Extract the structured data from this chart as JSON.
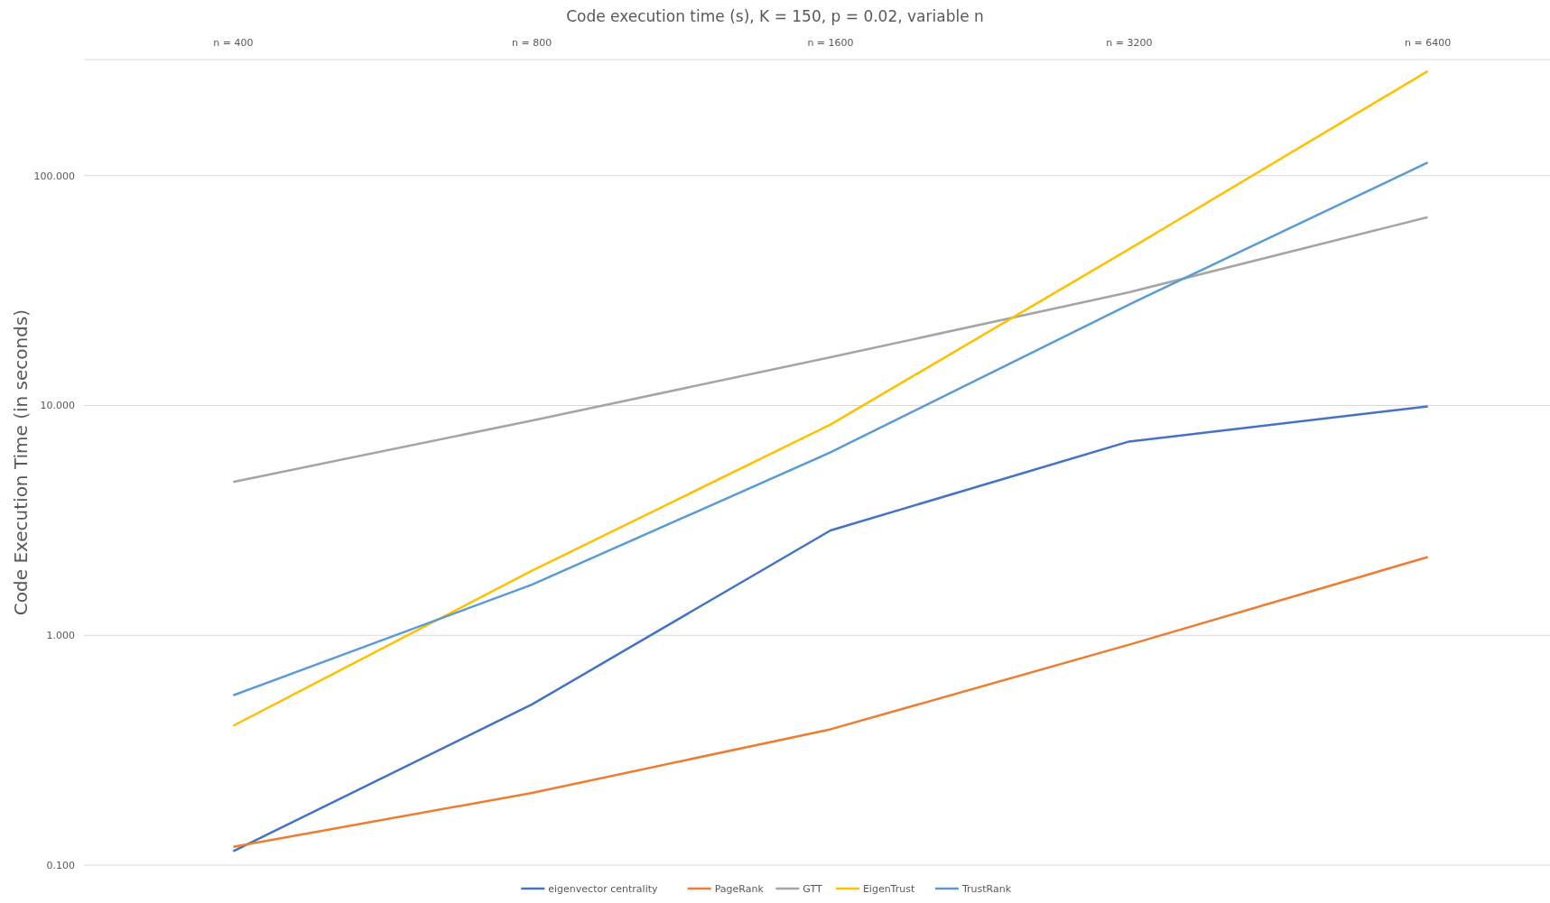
{
  "chart_data": {
    "type": "line",
    "title": "Code execution time (s), K = 150, p = 0.02, variable n",
    "ylabel": "Code Execution Time (in seconds)",
    "categories": [
      "n = 400",
      "n = 800",
      "n = 1600",
      "n = 3200",
      "n = 6400"
    ],
    "series": [
      {
        "name": "eigenvector centrality",
        "color": "#4472c4",
        "values": [
          0.115,
          0.5,
          2.86,
          6.97,
          9.9
        ]
      },
      {
        "name": "PageRank",
        "color": "#ed7d31",
        "values": [
          0.12,
          0.206,
          0.39,
          0.91,
          2.19
        ]
      },
      {
        "name": "GTT",
        "color": "#a5a5a5",
        "values": [
          4.65,
          8.6,
          16.2,
          31.1,
          66
        ]
      },
      {
        "name": "EigenTrust",
        "color": "#ffc000",
        "values": [
          0.404,
          1.91,
          8.26,
          47.9,
          285
        ]
      },
      {
        "name": "TrustRank",
        "color": "#5b9bd5",
        "values": [
          0.548,
          1.66,
          6.25,
          27.5,
          114
        ]
      }
    ],
    "log": true,
    "ylim": [
      0.1,
      320
    ],
    "yticks": [
      {
        "value": 0.1,
        "label": "0.100"
      },
      {
        "value": 1,
        "label": "1.000"
      },
      {
        "value": 10,
        "label": "10.000"
      },
      {
        "value": 100,
        "label": "100.000"
      }
    ],
    "grid": "y",
    "legend": "bottom",
    "marker": "none",
    "line_style": "solid"
  }
}
